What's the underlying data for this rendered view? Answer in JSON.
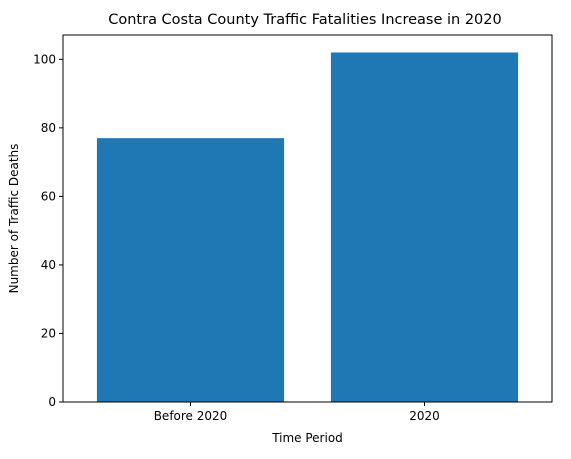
{
  "chart_data": {
    "type": "bar",
    "title": "Contra Costa County Traffic Fatalities Increase in 2020",
    "xlabel": "Time Period",
    "ylabel": "Number of Traffic Deaths",
    "categories": [
      "Before 2020",
      "2020"
    ],
    "values": [
      77,
      102
    ],
    "ylim": [
      0,
      107.1
    ],
    "yticks": [
      0,
      20,
      40,
      60,
      80,
      100
    ],
    "bar_color": "#1f77b4",
    "grid": false,
    "legend": "none"
  }
}
